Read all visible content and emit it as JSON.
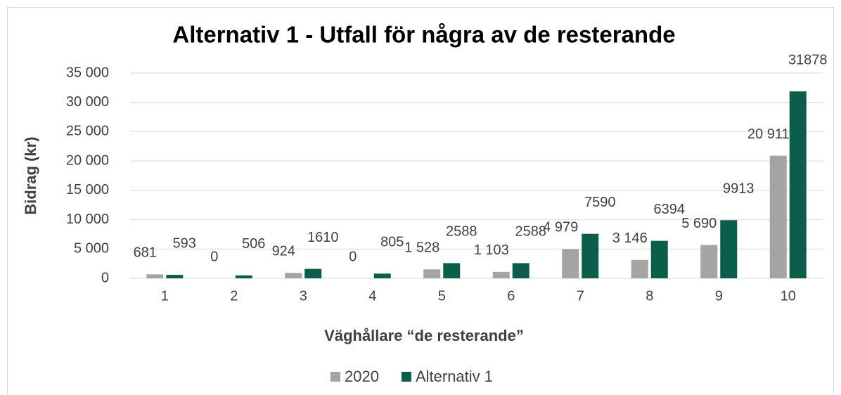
{
  "chart_data": {
    "type": "bar",
    "title": "Alternativ 1 - Utfall för några av de resterande",
    "y_label": "Bidrag (kr)",
    "x_label": "Väghållare “de resterande”",
    "categories": [
      "1",
      "2",
      "3",
      "4",
      "5",
      "6",
      "7",
      "8",
      "9",
      "10"
    ],
    "series": [
      {
        "name": "2020",
        "color": "#a5a3a3",
        "values": [
          681,
          0,
          924,
          0,
          1528,
          1103,
          4979,
          3146,
          5690,
          20911
        ],
        "value_labels": [
          "681",
          "0",
          "924",
          "0",
          "1 528",
          "1 103",
          "4 979",
          "3 146",
          "5 690",
          "20 911"
        ]
      },
      {
        "name": "Alternativ 1",
        "color": "#0b5e4a",
        "values": [
          593,
          506,
          1610,
          805,
          2588,
          2588,
          7590,
          6394,
          9913,
          31878
        ]
      }
    ],
    "ylim": [
      0,
      35000
    ],
    "yticks": [
      0,
      {
        "value": 5000,
        "label": "5 000"
      },
      {
        "value": 10000,
        "label": "10 000"
      },
      {
        "value": 15000,
        "label": "15 000"
      },
      {
        "value": 20000,
        "label": "20 000"
      },
      {
        "value": 25000,
        "label": "25 000"
      },
      {
        "value": 30000,
        "label": "30 000"
      },
      {
        "value": 35000,
        "label": "35 000"
      }
    ],
    "grid": true,
    "legend": "bottom"
  }
}
